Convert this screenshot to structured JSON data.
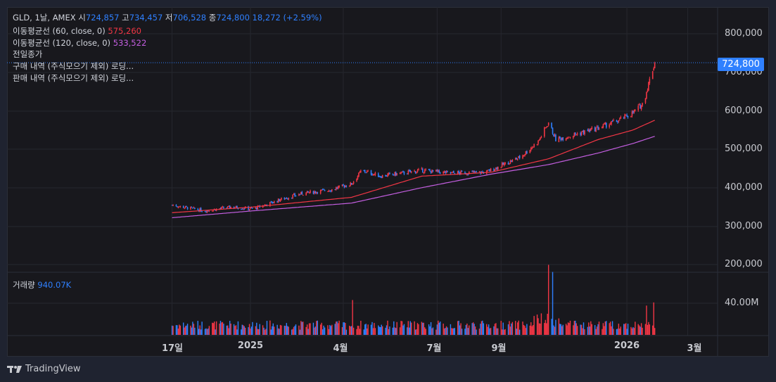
{
  "header": {
    "symbol_line": "GLD, 1날, AMEX",
    "open_label": "시",
    "open": "724,857",
    "high_label": "고",
    "high": "734,457",
    "low_label": "저",
    "low": "706,528",
    "close_label": "종",
    "close": "724,800",
    "change": "18,272 (+2.59%)"
  },
  "indicators": [
    {
      "label": "이동평균선 (60, close, 0)",
      "value": "575,260",
      "color": "#f23645"
    },
    {
      "label": "이동평균선 (120, close, 0)",
      "value": "533,522",
      "color": "#c35ee0"
    },
    {
      "label": "전일종가"
    },
    {
      "label": "구매 내역 (주식모으기 제외) 로딩..."
    },
    {
      "label": "판매 내역 (주식모으기 제외) 로딩..."
    }
  ],
  "volume": {
    "label": "거래량",
    "value": "940.07K"
  },
  "last_price_tag": "724,800",
  "price_axis": [
    "800,000",
    "700,000",
    "600,000",
    "500,000",
    "400,000",
    "300,000",
    "200,000"
  ],
  "volume_axis": [
    "40.00M"
  ],
  "time_axis": [
    {
      "label": "17일",
      "date": "2024-10-17"
    },
    {
      "label": "2025",
      "date": "2025-01-01"
    },
    {
      "label": "4월",
      "date": "2025-04-01"
    },
    {
      "label": "7월",
      "date": "2025-07-01"
    },
    {
      "label": "9월",
      "date": "2025-09-01"
    },
    {
      "label": "2026",
      "date": "2026-01-01"
    },
    {
      "label": "3월",
      "date": "2026-03-01"
    }
  ],
  "branding": "TradingView",
  "colors": {
    "up": "#f23645",
    "down": "#2f80ff",
    "ma60": "#f23645",
    "ma120": "#c35ee0",
    "background": "#18181d"
  },
  "chart_data": {
    "type": "candlestick",
    "ylim": [
      180000,
      830000
    ],
    "price_ticks": [
      200000,
      300000,
      400000,
      500000,
      600000,
      700000,
      800000
    ],
    "close_keypoints": [
      [
        "2024-10-17",
        355000
      ],
      [
        "2024-11-17",
        340000
      ],
      [
        "2024-12-14",
        350000
      ],
      [
        "2025-01-04",
        345000
      ],
      [
        "2025-01-31",
        370000
      ],
      [
        "2025-02-20",
        385000
      ],
      [
        "2025-03-20",
        395000
      ],
      [
        "2025-04-09",
        410000
      ],
      [
        "2025-04-19",
        445000
      ],
      [
        "2025-05-07",
        430000
      ],
      [
        "2025-06-03",
        440000
      ],
      [
        "2025-06-16",
        445000
      ],
      [
        "2025-07-14",
        438000
      ],
      [
        "2025-08-17",
        440000
      ],
      [
        "2025-08-30",
        455000
      ],
      [
        "2025-09-20",
        480000
      ],
      [
        "2025-10-07",
        520000
      ],
      [
        "2025-10-17",
        570000
      ],
      [
        "2025-10-24",
        525000
      ],
      [
        "2025-11-14",
        540000
      ],
      [
        "2025-12-04",
        555000
      ],
      [
        "2025-12-24",
        575000
      ],
      [
        "2026-01-07",
        595000
      ],
      [
        "2026-01-17",
        620000
      ],
      [
        "2026-01-24",
        690000
      ],
      [
        "2026-01-28",
        724800
      ]
    ],
    "ma60_keypoints": [
      [
        "2024-10-17",
        335000
      ],
      [
        "2025-01-04",
        350000
      ],
      [
        "2025-04-09",
        375000
      ],
      [
        "2025-06-16",
        430000
      ],
      [
        "2025-08-22",
        440000
      ],
      [
        "2025-10-17",
        475000
      ],
      [
        "2025-12-04",
        525000
      ],
      [
        "2026-01-07",
        550000
      ],
      [
        "2026-01-28",
        575260
      ]
    ],
    "ma120_keypoints": [
      [
        "2024-10-17",
        322000
      ],
      [
        "2025-01-04",
        340000
      ],
      [
        "2025-04-09",
        360000
      ],
      [
        "2025-06-16",
        400000
      ],
      [
        "2025-08-22",
        435000
      ],
      [
        "2025-10-17",
        460000
      ],
      [
        "2025-12-04",
        490000
      ],
      [
        "2026-01-07",
        515000
      ],
      [
        "2026-01-28",
        533522
      ]
    ],
    "volume_ticks": [
      40000000
    ],
    "volume_typical": 13000000,
    "volume_spikes": [
      [
        "2025-04-10",
        44000000
      ],
      [
        "2025-10-17",
        59000000
      ],
      [
        "2025-10-21",
        53000000
      ],
      [
        "2026-01-20",
        37000000
      ],
      [
        "2026-01-27",
        41000000
      ]
    ]
  }
}
